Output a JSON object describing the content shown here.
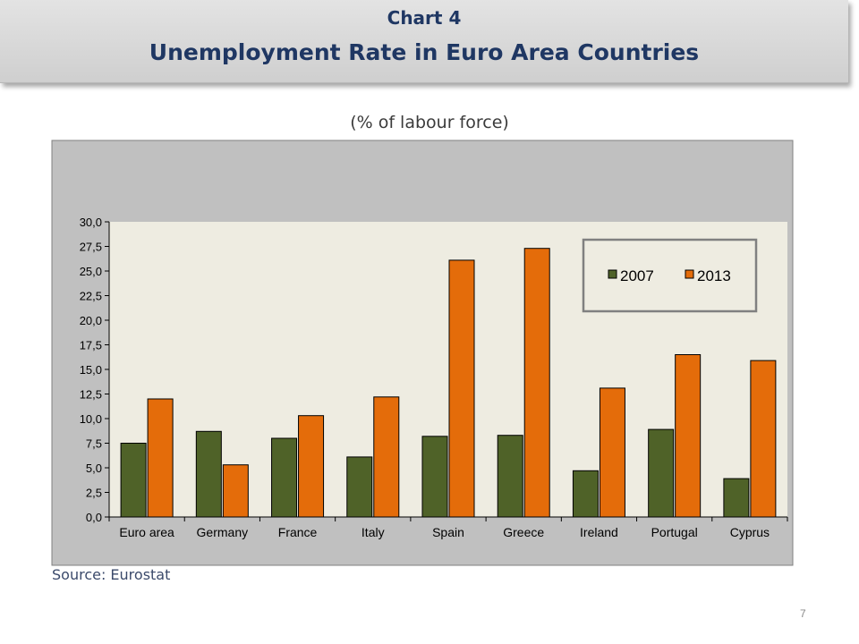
{
  "header": {
    "chart_number": "Chart 4",
    "title": "Unemployment Rate in Euro Area Countries"
  },
  "subtitle": "(% of labour force)",
  "source": "Source: Eurostat",
  "page_number": "7",
  "colors": {
    "series_2007": "#4f6228",
    "series_2013": "#e46c0a",
    "plot_background": "#eeece1",
    "outer_background": "#c0c0c0"
  },
  "chart_data": {
    "type": "bar",
    "categories": [
      "Euro area",
      "Germany",
      "France",
      "Italy",
      "Spain",
      "Greece",
      "Ireland",
      "Portugal",
      "Cyprus"
    ],
    "series": [
      {
        "name": "2007",
        "values": [
          7.5,
          8.7,
          8.0,
          6.1,
          8.2,
          8.3,
          4.7,
          8.9,
          3.9
        ]
      },
      {
        "name": "2013",
        "values": [
          12.0,
          5.3,
          10.3,
          12.2,
          26.1,
          27.3,
          13.1,
          16.5,
          15.9
        ]
      }
    ],
    "yticks": [
      "0,0",
      "2,5",
      "5,0",
      "7,5",
      "10,0",
      "12,5",
      "15,0",
      "17,5",
      "20,0",
      "22,5",
      "25,0",
      "27,5",
      "30,0"
    ],
    "ylim": [
      0,
      30
    ],
    "ystep": 2.5,
    "legend_position": "top-right"
  }
}
